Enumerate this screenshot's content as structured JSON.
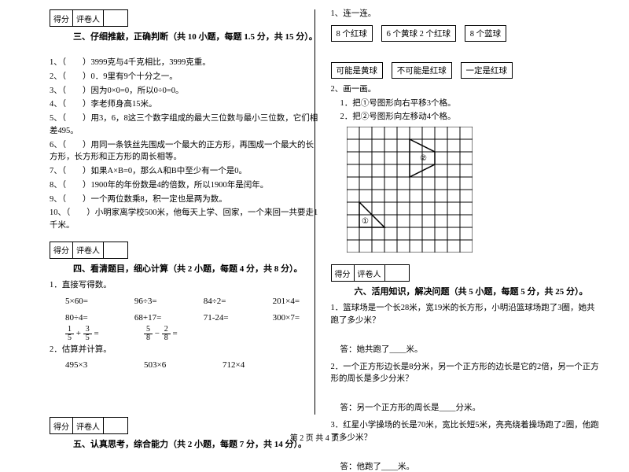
{
  "scoreLabels": {
    "score": "得分",
    "grader": "评卷人"
  },
  "section3": {
    "title": "三、仔细推敲，正确判断（共 10 小题，每题 1.5 分，共 15 分）。",
    "items": [
      "1、（　　）3999克与4千克相比，3999克重。",
      "2、（　　）0．9里有9个十分之一。",
      "3、（　　）因为0×0=0，所以0÷0=0。",
      "4、（　　）李老师身高15米。",
      "5、（　　）用3，6，8这三个数字组成的最大三位数与最小三位数，它们相差495。",
      "6、（　　）用同一条铁丝先围成一个最大的正方形，再围成一个最大的长方形，长方形和正方形的周长相等。",
      "7、（　　）如果A×B=0，那么A和B中至少有一个是0。",
      "8、（　　）1900年的年份数是4的倍数，所以1900年是闰年。",
      "9、（　　）一个两位数乘8，积一定也是两为数。",
      "10、（　　）小明家离学校500米，他每天上学、回家，一个来回一共要走1千米。"
    ]
  },
  "section4": {
    "title": "四、看清题目，细心计算（共 2 小题，每题 4 分，共 8 分）。",
    "sub1": "1．直接写得数。",
    "row1": [
      "5×60=",
      "96÷3=",
      "84÷2=",
      "201×4="
    ],
    "row2": [
      "80÷4=",
      "68+17=",
      "71-24=",
      "300×7="
    ],
    "fracExpr": " = ",
    "sub2": "2．估算并计算。",
    "row3": [
      "495×3",
      "503×6",
      "712×4"
    ]
  },
  "section5": {
    "title": "五、认真思考，综合能力（共 2 小题，每题 7 分，共 14 分）。",
    "q1": "1、连一连。",
    "optsTop": [
      "8 个红球",
      "6 个黄球 2 个红球",
      "8 个蓝球"
    ],
    "optsBot": [
      "可能是黄球",
      "不可能是红球",
      "一定是红球"
    ],
    "q2": "2、画一画。",
    "q2a": "1．把①号图形向右平移3个格。",
    "q2b": "2．把②号图形向左移动4个格。",
    "label1": "①",
    "label2": "②"
  },
  "section6": {
    "title": "六、活用知识，解决问题（共 5 小题，每题 5 分，共 25 分）。",
    "q1": "1．篮球场是一个长28米，宽19米的长方形，小明沿篮球场跑了3圈，她共跑了多少米？",
    "a1": "答：她共跑了____米。",
    "q2": "2．一个正方形边长是8分米，另一个正方形的边长是它的2倍，另一个正方形的周长是多少分米？",
    "a2": "答：另一个正方形的周长是____分米。",
    "q3": "3．红星小学操场的长是70米，宽比长短5米，亮亮绕着操场跑了2圈，他跑了多少米？",
    "a3": "答：他跑了____米。"
  },
  "footer": "第 2 页  共 4 页",
  "grid": {
    "cells": 10,
    "size": 16,
    "stroke": "#000000"
  }
}
